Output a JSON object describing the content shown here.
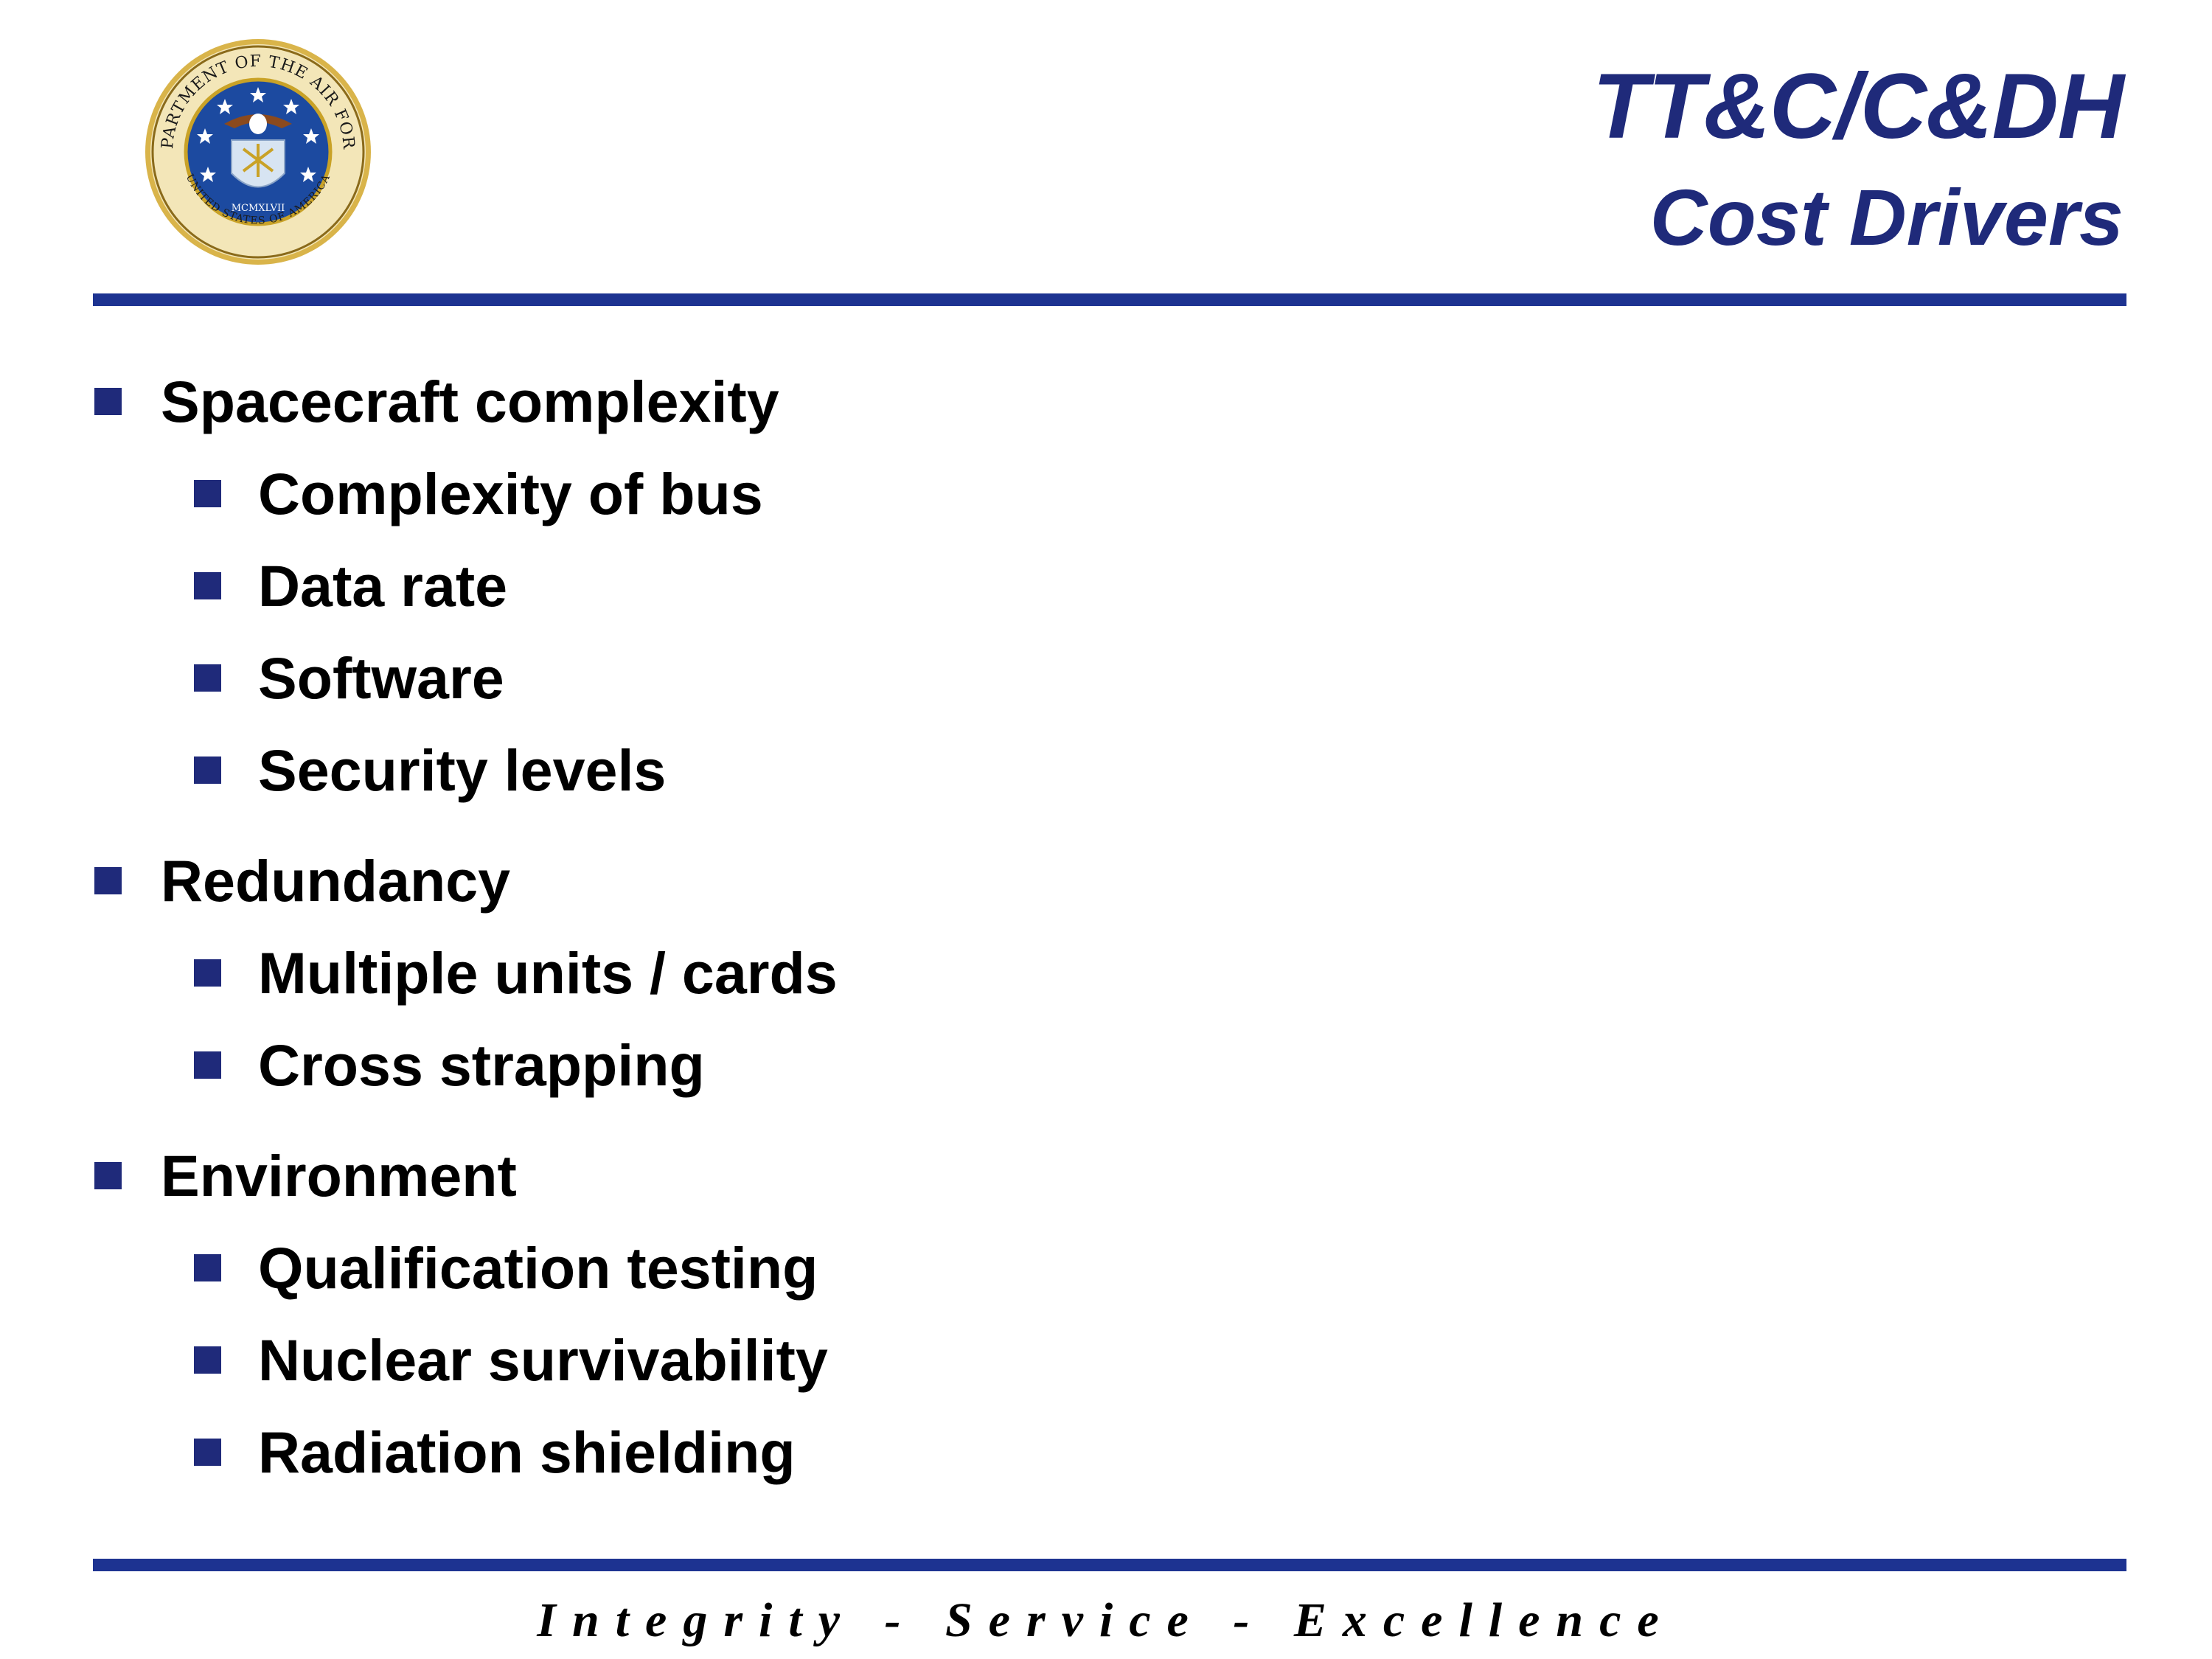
{
  "header": {
    "title_line1": "TT&C/C&DH",
    "title_line2": "Cost Drivers",
    "seal": {
      "top_text": "DEPARTMENT OF THE AIR FORCE",
      "bottom_text": "UNITED STATES OF AMERICA",
      "year": "MCMXLVII"
    }
  },
  "bullets": [
    {
      "label": "Spacecraft complexity",
      "children": [
        "Complexity of bus",
        "Data rate",
        "Software",
        "Security levels"
      ]
    },
    {
      "label": "Redundancy",
      "children": [
        "Multiple units / cards",
        "Cross strapping"
      ]
    },
    {
      "label": "Environment",
      "children": [
        "Qualification testing",
        "Nuclear survivability",
        "Radiation shielding"
      ]
    }
  ],
  "footer": {
    "motto": "Integrity - Service - Excellence"
  },
  "colors": {
    "title": "#1f2a7a",
    "rule": "#1d3391",
    "bullet": "#1f2a7a",
    "seal_blue": "#1c4aa0",
    "seal_gold": "#c9a227"
  }
}
